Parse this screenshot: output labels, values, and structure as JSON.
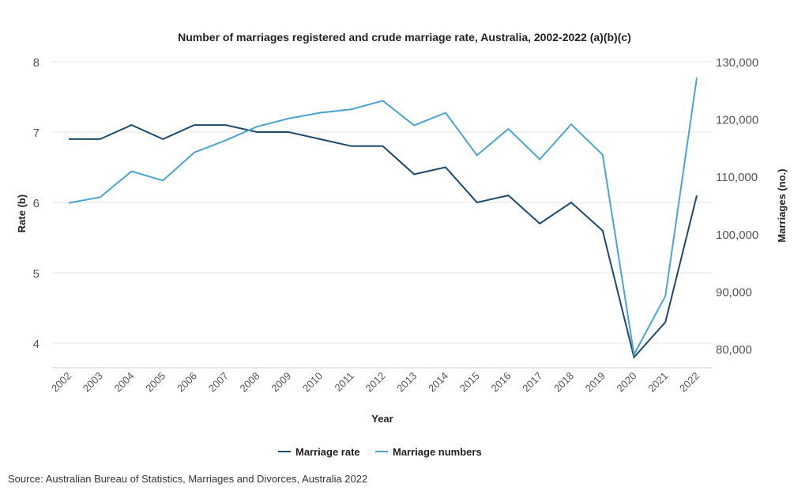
{
  "chart_data": {
    "type": "line",
    "title": "Number of marriages registered and crude marriage rate, Australia, 2002-2022 (a)(b)(c)",
    "xlabel": "Year",
    "ylabel_left": "Rate (b)",
    "ylabel_right": "Marriages (no.)",
    "x": [
      "2002",
      "2003",
      "2004",
      "2005",
      "2006",
      "2007",
      "2008",
      "2009",
      "2010",
      "2011",
      "2012",
      "2013",
      "2014",
      "2015",
      "2016",
      "2017",
      "2018",
      "2019",
      "2020",
      "2021",
      "2022"
    ],
    "ylim_left": [
      3.6,
      8
    ],
    "yticks_left": [
      "8",
      "7",
      "6",
      "5",
      "4"
    ],
    "ylim_right": [
      77000,
      130000
    ],
    "yticks_right": [
      "130,000",
      "120,000",
      "110,000",
      "100,000",
      "90,000",
      "80,000"
    ],
    "grid": true,
    "legend_placement": "bottom",
    "series": [
      {
        "name": "Marriage rate",
        "axis": "left",
        "color": "#1d4a6b",
        "values": [
          6.9,
          6.9,
          7.1,
          6.9,
          7.1,
          7.1,
          7.0,
          7.0,
          6.9,
          6.8,
          6.8,
          6.4,
          6.5,
          6.0,
          6.1,
          5.7,
          6.0,
          5.6,
          3.8,
          4.3,
          6.1
        ]
      },
      {
        "name": "Marriage numbers",
        "axis": "right",
        "color": "#4da3cf",
        "values": [
          105400,
          106400,
          110900,
          109300,
          114200,
          116300,
          118700,
          120100,
          121100,
          121700,
          123200,
          118900,
          121100,
          113700,
          118300,
          113000,
          119100,
          113800,
          79000,
          89200,
          127200
        ]
      }
    ]
  },
  "source": "Source: Australian Bureau of Statistics, Marriages and Divorces, Australia 2022"
}
